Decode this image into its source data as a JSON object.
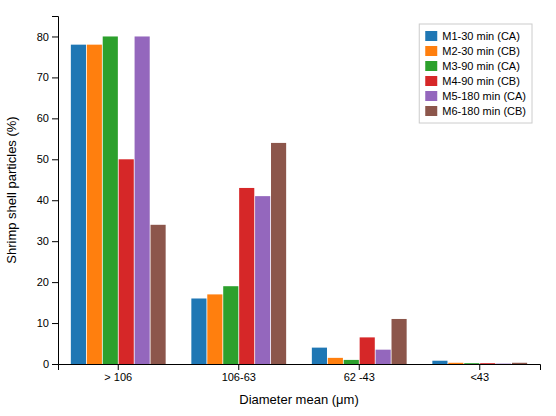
{
  "chart_data": {
    "type": "bar",
    "categories": [
      "> 106",
      "106-63",
      "62 -43",
      "<43"
    ],
    "series": [
      {
        "name": "M1-30 min (CA)",
        "values": [
          78,
          16,
          4,
          0.8
        ]
      },
      {
        "name": "M2-30 min (CB)",
        "values": [
          78,
          17,
          1.5,
          0.3
        ]
      },
      {
        "name": "M3-90 min (CA)",
        "values": [
          80,
          19,
          1.0,
          0.2
        ]
      },
      {
        "name": "M4-90 min (CB)",
        "values": [
          50,
          43,
          6.5,
          0.2
        ]
      },
      {
        "name": "M5-180 min (CA)",
        "values": [
          80,
          41,
          3.5,
          0.1
        ]
      },
      {
        "name": "M6-180 min (CB)",
        "values": [
          34,
          54,
          11,
          0.3
        ]
      }
    ],
    "xlabel": "Diameter mean (μm)",
    "ylabel": "Shrimp shell particles (%)",
    "ylim": [
      0,
      85
    ],
    "yticks": [
      0,
      10,
      20,
      30,
      40,
      50,
      60,
      70,
      80
    ],
    "legend": "upper right",
    "grid": false
  }
}
